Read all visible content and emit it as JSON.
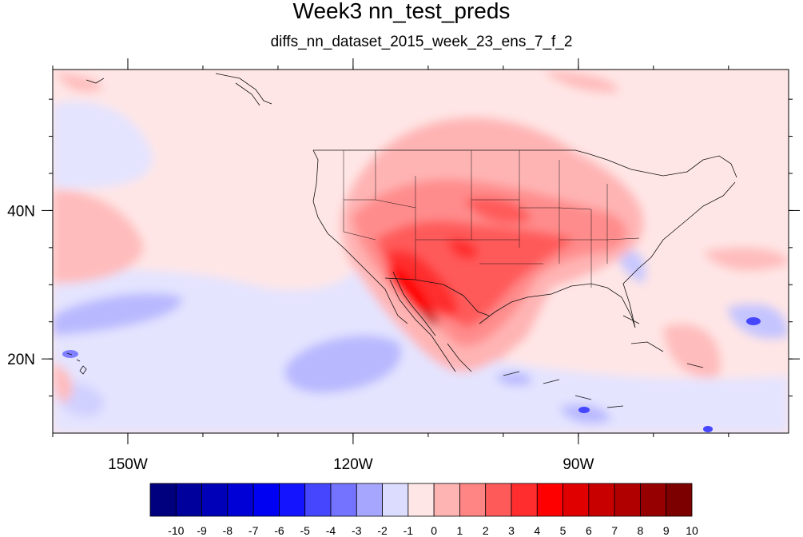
{
  "chart_data": {
    "type": "heatmap",
    "title": "Week3 nn_test_preds",
    "subtitle": "diffs_nn_dataset_2015_week_23_ens_7_f_2",
    "map": {
      "lon_range": [
        -160,
        -62
      ],
      "lat_range": [
        10,
        59
      ],
      "x_tick_labels": [
        {
          "lon": -150,
          "label": "150W"
        },
        {
          "lon": -120,
          "label": "120W"
        },
        {
          "lon": -90,
          "label": "90W"
        }
      ],
      "y_tick_labels": [
        {
          "lat": 40,
          "label": "40N"
        },
        {
          "lat": 20,
          "label": "20N"
        }
      ],
      "x_minor_ticks": [
        -160,
        -150,
        -140,
        -130,
        -120,
        -110,
        -100,
        -90,
        -80,
        -70
      ],
      "y_minor_ticks": [
        15,
        20,
        25,
        30,
        35,
        40,
        45,
        50,
        55
      ]
    },
    "colorbar": {
      "labels": [
        "-10",
        "-9",
        "-8",
        "-7",
        "-6",
        "-5",
        "-4",
        "-3",
        "-2",
        "-1",
        "0",
        "1",
        "2",
        "3",
        "4",
        "5",
        "6",
        "7",
        "8",
        "9",
        "10"
      ],
      "colors": [
        "#00007f",
        "#00009d",
        "#0000b9",
        "#0000d6",
        "#0000f2",
        "#1414ff",
        "#4646ff",
        "#7373ff",
        "#a6a6ff",
        "#dcdcff",
        "#ffe6e6",
        "#ffb4b4",
        "#ff8484",
        "#ff5a5a",
        "#ff2d2d",
        "#ff0000",
        "#e10000",
        "#c80000",
        "#b00000",
        "#960000",
        "#7d0000"
      ]
    },
    "regions": [
      {
        "value": 3,
        "lon": -103,
        "lat": 36,
        "rlon": 13,
        "rlat": 7
      },
      {
        "value": 4,
        "lon": -106,
        "lat": 34,
        "rlon": 8,
        "rlat": 4
      },
      {
        "value": 6,
        "lon": -114,
        "lat": 31,
        "rlon": 3,
        "rlat": 3
      },
      {
        "value": 7,
        "lon": -110,
        "lat": 27.5,
        "rlon": 2,
        "rlat": 2
      },
      {
        "value": -2,
        "lon": -125,
        "lat": 19,
        "rlon": 6,
        "rlat": 2.5
      },
      {
        "value": -3,
        "lon": -150,
        "lat": 26,
        "rlon": 8,
        "rlat": 2.5
      }
    ]
  }
}
